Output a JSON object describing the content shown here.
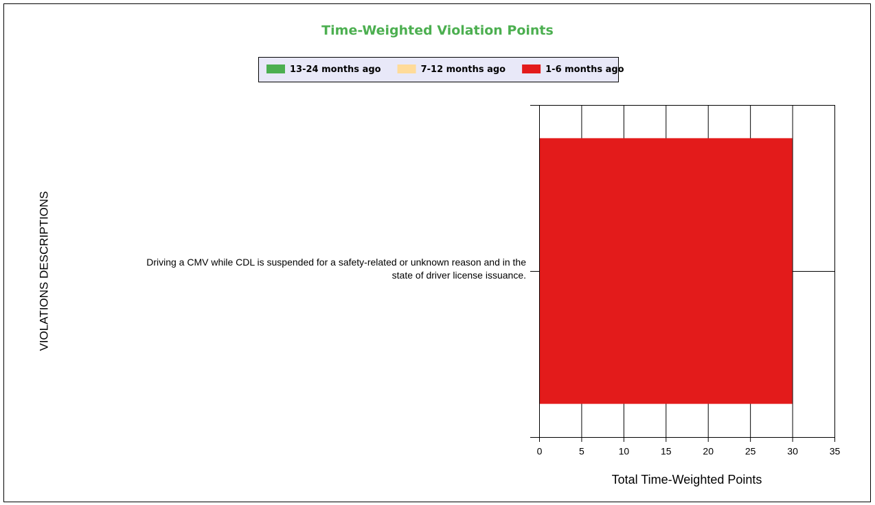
{
  "chart_data": {
    "type": "stacked_bar_horizontal",
    "title": "Time-Weighted Violation Points",
    "categories": [
      "Driving a CMV while CDL is suspended for a safety-related or unknown reason and in the state of driver  license issuance."
    ],
    "series": [
      {
        "name": "13-24 months ago",
        "color": "#4caf50",
        "values": [
          0
        ]
      },
      {
        "name": "7-12 months ago",
        "color": "#ffdb99",
        "values": [
          0
        ]
      },
      {
        "name": "1-6 months ago",
        "color": "#e31b1b",
        "values": [
          30
        ]
      }
    ],
    "xlim": [
      0,
      35
    ],
    "xticks": [
      0,
      5,
      10,
      15,
      20,
      25,
      30,
      35
    ],
    "xlabel": "Total Time-Weighted Points",
    "ylabel": "VIOLATIONS DESCRIPTIONS",
    "grid": true,
    "legend": "top"
  }
}
